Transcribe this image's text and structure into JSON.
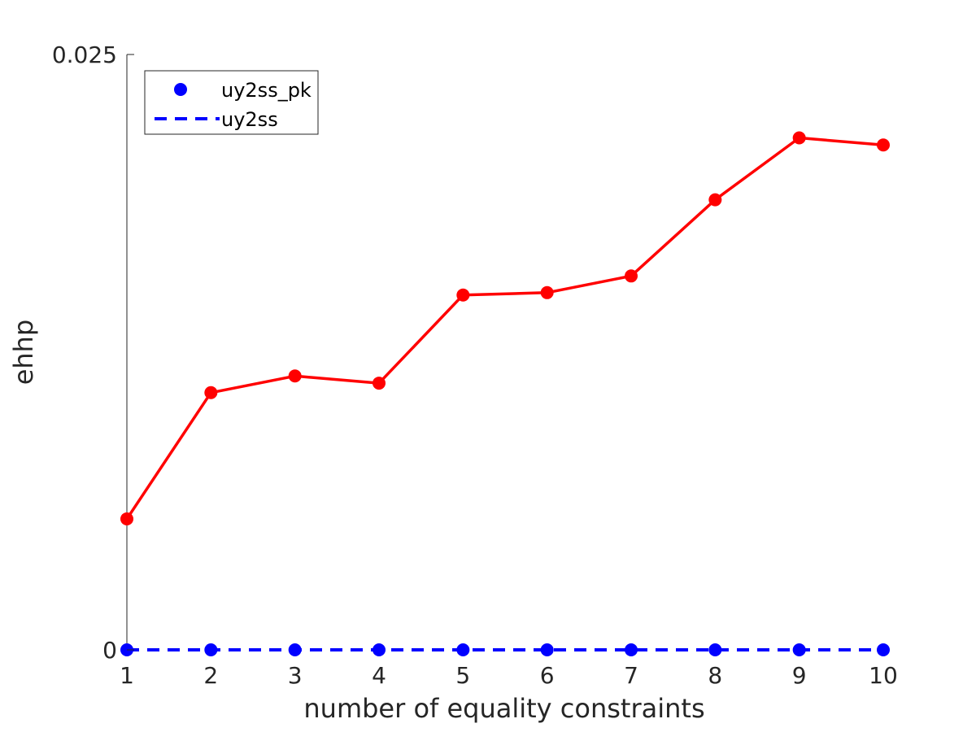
{
  "chart_data": {
    "type": "line",
    "xlabel": "number of equality constraints",
    "ylabel": "ehhp",
    "x": [
      1,
      2,
      3,
      4,
      5,
      6,
      7,
      8,
      9,
      10
    ],
    "xlim": [
      1,
      10
    ],
    "ylim": [
      0,
      0.025
    ],
    "xticks": [
      "1",
      "2",
      "3",
      "4",
      "5",
      "6",
      "7",
      "8",
      "9",
      "10"
    ],
    "yticks": [
      "0",
      "0.025"
    ],
    "grid": false,
    "legend_position": "top-left",
    "series": [
      {
        "name": "uy2ss_pk",
        "color": "#0000ff",
        "style": "markers",
        "values": [
          0,
          0,
          0,
          0,
          0,
          0,
          0,
          0,
          0,
          0
        ]
      },
      {
        "name": "uy2ss",
        "color": "#0000ff",
        "style": "dashed",
        "values": [
          0,
          0,
          0,
          0,
          0,
          0,
          0,
          0,
          0,
          0
        ]
      },
      {
        "color": "#ff0000",
        "style": "line-markers",
        "values": [
          0.0055,
          0.0108,
          0.0115,
          0.0112,
          0.0149,
          0.015,
          0.0157,
          0.0189,
          0.0215,
          0.0212
        ]
      }
    ]
  }
}
